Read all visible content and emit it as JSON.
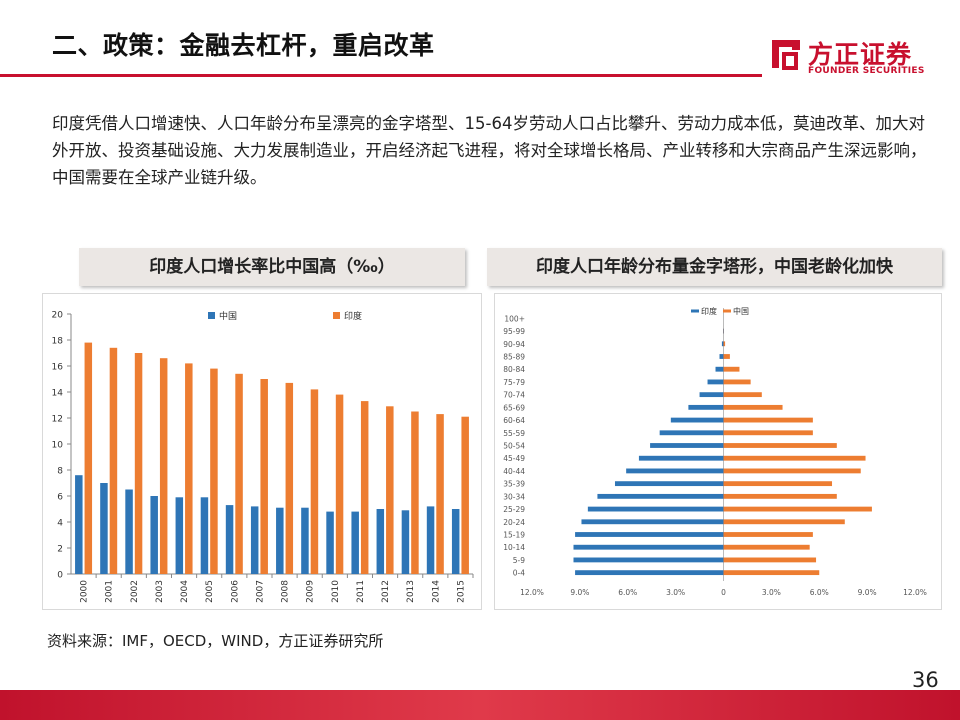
{
  "header": {
    "title": "二、政策：金融去杠杆，重启改革",
    "logo_cn": "方正证券",
    "logo_en": "FOUNDER SECURITIES"
  },
  "body_text": "印度凭借人口增速快、人口年龄分布呈漂亮的金字塔型、15-64岁劳动人口占比攀升、劳动力成本低，莫迪改革、加大对外开放、投资基础设施、大力发展制造业，开启经济起飞进程，将对全球增长格局、产业转移和大宗商品产生深远影响，中国需要在全球产业链升级。",
  "chart1_heading": "印度人口增长率比中国高（‰）",
  "chart2_heading": "印度人口年龄分布量金字塔形，中国老龄化加快",
  "source": "资料来源：IMF，OECD，WIND，方正证券研究所",
  "page_number": "36",
  "colors": {
    "china": "#2e75b6",
    "india": "#ed7d31",
    "brand": "#c8102e"
  },
  "chart_data": [
    {
      "type": "bar",
      "categories": [
        "2000",
        "2001",
        "2002",
        "2003",
        "2004",
        "2005",
        "2006",
        "2007",
        "2008",
        "2009",
        "2010",
        "2011",
        "2012",
        "2013",
        "2014",
        "2015"
      ],
      "series": [
        {
          "name": "中国",
          "values": [
            7.6,
            7.0,
            6.5,
            6.0,
            5.9,
            5.9,
            5.3,
            5.2,
            5.1,
            5.1,
            4.8,
            4.8,
            5.0,
            4.9,
            5.2,
            5.0
          ]
        },
        {
          "name": "印度",
          "values": [
            17.8,
            17.4,
            17.0,
            16.6,
            16.2,
            15.8,
            15.4,
            15.0,
            14.7,
            14.2,
            13.8,
            13.3,
            12.9,
            12.5,
            12.3,
            12.1
          ]
        }
      ],
      "yticks": [
        "0",
        "2",
        "4",
        "6",
        "8",
        "10",
        "12",
        "14",
        "16",
        "18",
        "20"
      ],
      "ylim": [
        0,
        20
      ],
      "legend": "top"
    },
    {
      "type": "bar",
      "orientation": "horizontal-diverging",
      "categories": [
        "0-4",
        "5-9",
        "10-14",
        "15-19",
        "20-24",
        "25-29",
        "30-34",
        "35-39",
        "40-44",
        "45-49",
        "50-54",
        "55-59",
        "60-64",
        "65-69",
        "70-74",
        "75-79",
        "80-84",
        "85-89",
        "90-94",
        "95-99",
        "100+"
      ],
      "series": [
        {
          "name": "印度",
          "side": "left",
          "values": [
            9.3,
            9.4,
            9.4,
            9.3,
            8.9,
            8.5,
            7.9,
            6.8,
            6.1,
            5.3,
            4.6,
            4.0,
            3.3,
            2.2,
            1.5,
            1.0,
            0.5,
            0.25,
            0.1,
            0.03,
            0.0
          ]
        },
        {
          "name": "中国",
          "side": "right",
          "values": [
            6.0,
            5.8,
            5.4,
            5.6,
            7.6,
            9.3,
            7.1,
            6.8,
            8.6,
            8.9,
            7.1,
            5.6,
            5.6,
            3.7,
            2.4,
            1.7,
            1.0,
            0.4,
            0.1,
            0.02,
            0.0
          ]
        }
      ],
      "xticks": [
        "12.0%",
        "9.0%",
        "6.0%",
        "3.0%",
        "0",
        "3.0%",
        "6.0%",
        "9.0%",
        "12.0%"
      ],
      "xlim": [
        -12,
        12
      ],
      "legend": "top-left"
    }
  ]
}
